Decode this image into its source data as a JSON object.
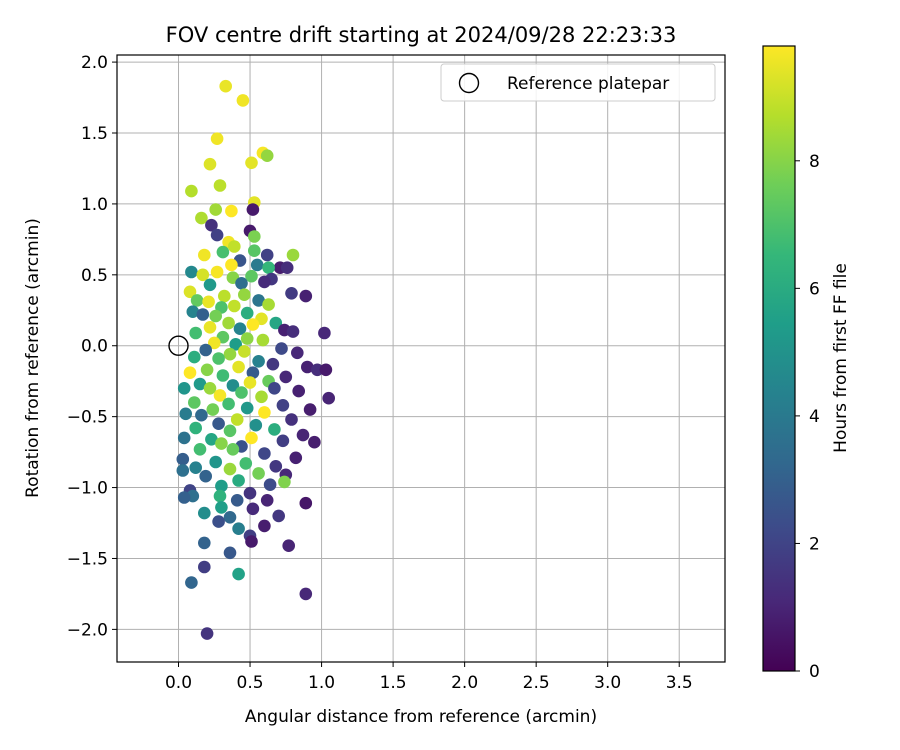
{
  "chart_data": {
    "type": "scatter",
    "title": "FOV centre drift starting at 2024/09/28 22:23:33",
    "xlabel": "Angular distance from reference (arcmin)",
    "ylabel": "Rotation from reference (arcmin)",
    "xlim": [
      -0.43,
      3.82
    ],
    "ylim": [
      -2.23,
      2.05
    ],
    "xticks": [
      "0.0",
      "0.5",
      "1.0",
      "1.5",
      "2.0",
      "2.5",
      "3.0",
      "3.5"
    ],
    "yticks": [
      "−2.0",
      "−1.5",
      "−1.0",
      "−0.5",
      "0.0",
      "0.5",
      "1.0",
      "1.5",
      "2.0"
    ],
    "grid": true,
    "legend": {
      "position": "top-right",
      "entries": [
        "Reference platepar"
      ]
    },
    "reference_point": {
      "x": 0.0,
      "y": 0.0
    },
    "colorbar": {
      "label": "Hours from first FF file",
      "cmap": "viridis",
      "range": [
        0,
        9.8
      ],
      "ticks": [
        "0",
        "2",
        "4",
        "6",
        "8"
      ]
    },
    "colors": {
      "viridis": [
        "#440154",
        "#482878",
        "#3e4989",
        "#31688e",
        "#26828e",
        "#1f9e89",
        "#35b779",
        "#6ece58",
        "#b5de2b",
        "#fde725"
      ]
    },
    "series": [
      {
        "points": [
          [
            0.33,
            1.83,
            9.5
          ],
          [
            0.45,
            1.73,
            9.6
          ],
          [
            0.27,
            1.46,
            9.6
          ],
          [
            0.59,
            1.36,
            9.7
          ],
          [
            0.62,
            1.34,
            8.2
          ],
          [
            0.22,
            1.28,
            9.3
          ],
          [
            0.51,
            1.29,
            9.4
          ],
          [
            0.29,
            1.13,
            8.8
          ],
          [
            0.09,
            1.09,
            8.7
          ],
          [
            0.53,
            1.01,
            9.4
          ],
          [
            0.26,
            0.96,
            8.4
          ],
          [
            0.37,
            0.95,
            9.8
          ],
          [
            0.16,
            0.9,
            8.6
          ],
          [
            0.52,
            0.96,
            0.7
          ],
          [
            0.23,
            0.85,
            1.4
          ],
          [
            0.27,
            0.78,
            1.9
          ],
          [
            0.5,
            0.81,
            0.7
          ],
          [
            0.35,
            0.73,
            9.6
          ],
          [
            0.53,
            0.77,
            7.8
          ],
          [
            0.39,
            0.7,
            8.9
          ],
          [
            0.31,
            0.66,
            6.9
          ],
          [
            0.53,
            0.67,
            7.2
          ],
          [
            0.62,
            0.64,
            1.9
          ],
          [
            0.8,
            0.64,
            8.3
          ],
          [
            0.18,
            0.64,
            9.6
          ],
          [
            0.43,
            0.6,
            2.6
          ],
          [
            0.37,
            0.57,
            9.9
          ],
          [
            0.55,
            0.57,
            4.0
          ],
          [
            0.71,
            0.55,
            0.8
          ],
          [
            0.76,
            0.55,
            1.3
          ],
          [
            0.63,
            0.55,
            6.5
          ],
          [
            0.09,
            0.52,
            4.6
          ],
          [
            0.17,
            0.5,
            9.2
          ],
          [
            0.27,
            0.52,
            9.7
          ],
          [
            0.38,
            0.48,
            8.0
          ],
          [
            0.51,
            0.49,
            7.3
          ],
          [
            0.65,
            0.47,
            1.6
          ],
          [
            0.44,
            0.44,
            3.5
          ],
          [
            0.22,
            0.43,
            5.3
          ],
          [
            0.6,
            0.45,
            1.2
          ],
          [
            0.79,
            0.37,
            1.7
          ],
          [
            0.89,
            0.35,
            0.9
          ],
          [
            0.08,
            0.38,
            9.3
          ],
          [
            0.46,
            0.36,
            8.2
          ],
          [
            0.32,
            0.35,
            8.8
          ],
          [
            0.13,
            0.32,
            7.4
          ],
          [
            0.21,
            0.31,
            9.5
          ],
          [
            0.56,
            0.32,
            3.8
          ],
          [
            0.63,
            0.29,
            8.5
          ],
          [
            0.39,
            0.28,
            8.9
          ],
          [
            0.3,
            0.27,
            7.0
          ],
          [
            0.1,
            0.24,
            4.4
          ],
          [
            0.48,
            0.23,
            6.1
          ],
          [
            0.17,
            0.22,
            3.0
          ],
          [
            0.26,
            0.21,
            7.7
          ],
          [
            0.58,
            0.19,
            9.4
          ],
          [
            0.68,
            0.16,
            5.8
          ],
          [
            0.52,
            0.15,
            9.8
          ],
          [
            0.35,
            0.16,
            8.4
          ],
          [
            0.22,
            0.13,
            9.5
          ],
          [
            0.43,
            0.12,
            4.4
          ],
          [
            0.74,
            0.11,
            0.9
          ],
          [
            0.8,
            0.1,
            1.3
          ],
          [
            1.02,
            0.09,
            1.1
          ],
          [
            0.12,
            0.09,
            6.8
          ],
          [
            0.31,
            0.06,
            7.3
          ],
          [
            0.48,
            0.05,
            8.1
          ],
          [
            0.59,
            0.04,
            8.5
          ],
          [
            0.25,
            0.02,
            9.6
          ],
          [
            0.4,
            0.01,
            5.4
          ],
          [
            0.72,
            -0.02,
            2.2
          ],
          [
            0.83,
            -0.05,
            1.1
          ],
          [
            0.19,
            -0.03,
            3.1
          ],
          [
            0.46,
            -0.04,
            9.0
          ],
          [
            0.36,
            -0.06,
            8.2
          ],
          [
            0.11,
            -0.08,
            6.1
          ],
          [
            0.28,
            -0.09,
            7.0
          ],
          [
            0.56,
            -0.11,
            4.3
          ],
          [
            0.66,
            -0.13,
            1.6
          ],
          [
            0.9,
            -0.15,
            0.9
          ],
          [
            0.97,
            -0.17,
            1.3
          ],
          [
            1.03,
            -0.17,
            0.7
          ],
          [
            0.42,
            -0.15,
            9.4
          ],
          [
            0.2,
            -0.17,
            8.0
          ],
          [
            0.08,
            -0.19,
            9.8
          ],
          [
            0.52,
            -0.19,
            2.8
          ],
          [
            0.31,
            -0.21,
            6.7
          ],
          [
            0.75,
            -0.22,
            1.1
          ],
          [
            0.63,
            -0.25,
            7.5
          ],
          [
            0.5,
            -0.26,
            9.5
          ],
          [
            0.15,
            -0.27,
            5.3
          ],
          [
            0.38,
            -0.28,
            4.8
          ],
          [
            0.22,
            -0.3,
            8.3
          ],
          [
            0.04,
            -0.3,
            5.1
          ],
          [
            0.67,
            -0.3,
            2.1
          ],
          [
            0.84,
            -0.32,
            0.9
          ],
          [
            0.29,
            -0.35,
            9.7
          ],
          [
            0.44,
            -0.33,
            7.0
          ],
          [
            1.05,
            -0.37,
            1.0
          ],
          [
            0.58,
            -0.36,
            8.5
          ],
          [
            0.11,
            -0.4,
            7.3
          ],
          [
            0.35,
            -0.41,
            6.8
          ],
          [
            0.73,
            -0.42,
            1.9
          ],
          [
            0.92,
            -0.45,
            0.8
          ],
          [
            0.24,
            -0.45,
            7.7
          ],
          [
            0.48,
            -0.44,
            5.2
          ],
          [
            0.6,
            -0.47,
            9.8
          ],
          [
            0.05,
            -0.48,
            4.1
          ],
          [
            0.16,
            -0.49,
            3.3
          ],
          [
            0.41,
            -0.52,
            8.9
          ],
          [
            0.79,
            -0.52,
            1.4
          ],
          [
            0.28,
            -0.55,
            2.7
          ],
          [
            0.54,
            -0.56,
            4.9
          ],
          [
            0.67,
            -0.59,
            6.1
          ],
          [
            0.12,
            -0.58,
            6.3
          ],
          [
            0.36,
            -0.6,
            7.2
          ],
          [
            0.87,
            -0.63,
            1.0
          ],
          [
            0.04,
            -0.65,
            3.7
          ],
          [
            0.51,
            -0.65,
            9.8
          ],
          [
            0.23,
            -0.66,
            5.8
          ],
          [
            0.73,
            -0.67,
            1.8
          ],
          [
            0.95,
            -0.68,
            0.8
          ],
          [
            0.3,
            -0.69,
            8.0
          ],
          [
            0.44,
            -0.71,
            2.5
          ],
          [
            0.15,
            -0.73,
            6.8
          ],
          [
            0.38,
            -0.73,
            7.5
          ],
          [
            0.6,
            -0.76,
            2.1
          ],
          [
            0.82,
            -0.79,
            0.9
          ],
          [
            0.03,
            -0.8,
            2.9
          ],
          [
            0.26,
            -0.82,
            5.1
          ],
          [
            0.47,
            -0.83,
            6.8
          ],
          [
            0.68,
            -0.85,
            1.6
          ],
          [
            0.12,
            -0.86,
            4.3
          ],
          [
            0.36,
            -0.87,
            8.3
          ],
          [
            0.03,
            -0.88,
            3.6
          ],
          [
            0.56,
            -0.9,
            7.7
          ],
          [
            0.75,
            -0.91,
            1.1
          ],
          [
            0.19,
            -0.92,
            3.1
          ],
          [
            0.42,
            -0.95,
            6.0
          ],
          [
            0.74,
            -0.96,
            7.9
          ],
          [
            0.64,
            -0.98,
            2.3
          ],
          [
            0.3,
            -0.99,
            5.4
          ],
          [
            0.08,
            -1.02,
            2.0
          ],
          [
            0.5,
            -1.04,
            1.5
          ],
          [
            0.29,
            -1.06,
            6.3
          ],
          [
            0.1,
            -1.06,
            3.6
          ],
          [
            0.04,
            -1.07,
            3.0
          ],
          [
            0.62,
            -1.09,
            1.0
          ],
          [
            0.41,
            -1.09,
            2.8
          ],
          [
            0.89,
            -1.11,
            0.6
          ],
          [
            0.3,
            -1.14,
            5.5
          ],
          [
            0.52,
            -1.15,
            1.2
          ],
          [
            0.18,
            -1.18,
            4.8
          ],
          [
            0.36,
            -1.21,
            3.3
          ],
          [
            0.7,
            -1.2,
            1.6
          ],
          [
            0.28,
            -1.24,
            2.4
          ],
          [
            0.6,
            -1.27,
            0.8
          ],
          [
            0.42,
            -1.29,
            4.2
          ],
          [
            0.5,
            -1.34,
            1.8
          ],
          [
            0.51,
            -1.38,
            0.7
          ],
          [
            0.18,
            -1.39,
            3.1
          ],
          [
            0.77,
            -1.41,
            1.0
          ],
          [
            0.36,
            -1.46,
            2.7
          ],
          [
            0.18,
            -1.56,
            1.8
          ],
          [
            0.42,
            -1.61,
            5.6
          ],
          [
            0.09,
            -1.67,
            3.2
          ],
          [
            0.89,
            -1.75,
            1.1
          ],
          [
            0.2,
            -2.03,
            1.5
          ]
        ]
      }
    ]
  }
}
